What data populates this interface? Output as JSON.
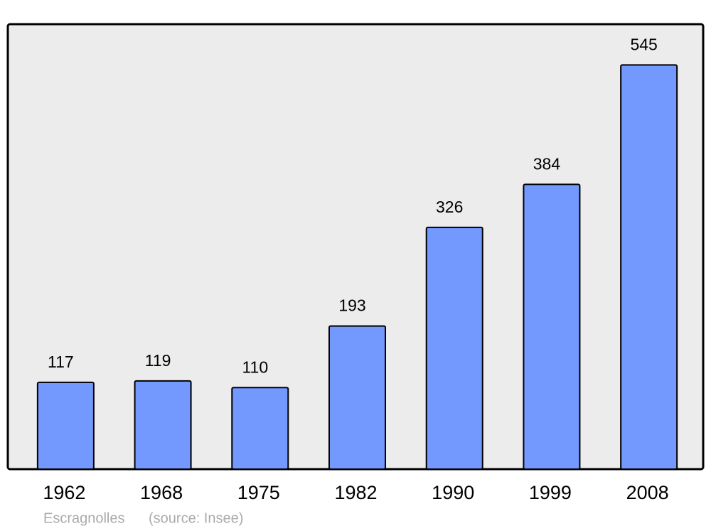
{
  "chart_data": {
    "type": "bar",
    "categories": [
      "1962",
      "1968",
      "1975",
      "1982",
      "1990",
      "1999",
      "2008"
    ],
    "values": [
      117,
      119,
      110,
      193,
      326,
      384,
      545
    ],
    "color": "#7399ff",
    "ylim": [
      0,
      600
    ],
    "caption": "Escragnolles",
    "source": "(source: Insee)"
  }
}
